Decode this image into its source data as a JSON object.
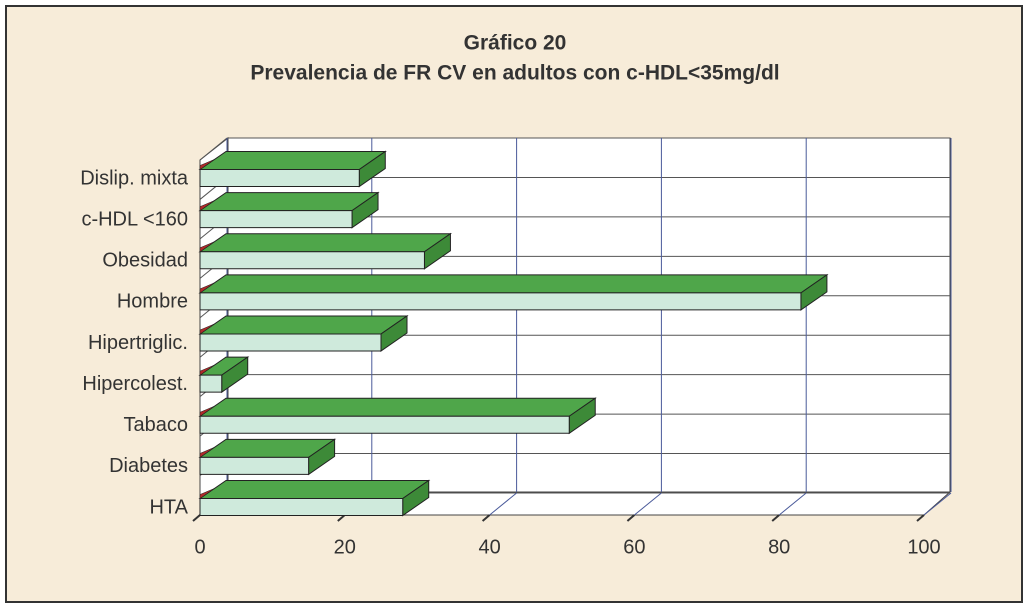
{
  "chart_data": {
    "type": "bar3d_horizontal",
    "title": "Gráfico 20",
    "subtitle": "Prevalencia de FR CV en adultos con c-HDL<35mg/dl",
    "categories": [
      "Dislip. mixta",
      "c-HDL <160",
      "Obesidad",
      "Hombre",
      "Hipertriglic.",
      "Hipercolest.",
      "Tabaco",
      "Diabetes",
      "HTA"
    ],
    "values": [
      22,
      21,
      31,
      83,
      25,
      3,
      51,
      15,
      28
    ],
    "color": "#cfeadc",
    "top_color": "#4fa64a",
    "xlim": [
      0,
      100
    ],
    "xticks": [
      0,
      20,
      40,
      60,
      80,
      100
    ],
    "grid": true
  }
}
